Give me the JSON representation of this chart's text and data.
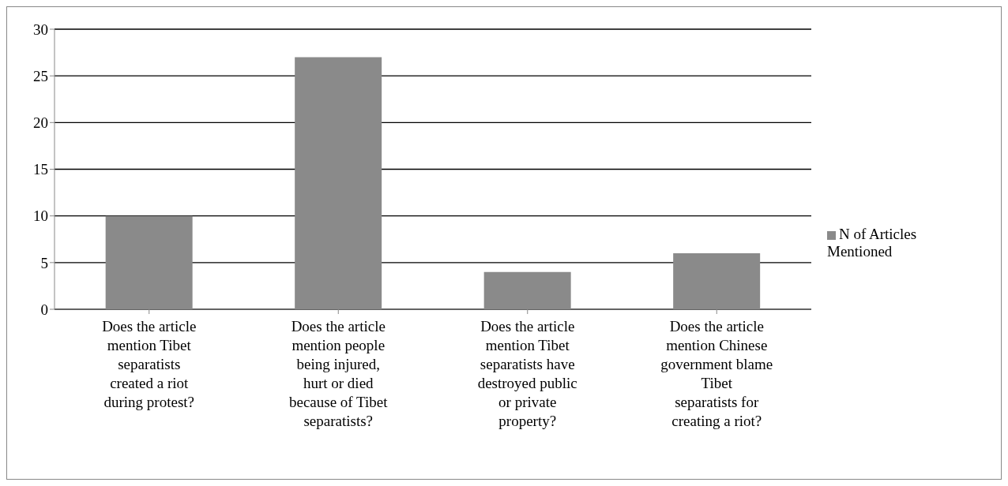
{
  "chart_data": {
    "type": "bar",
    "categories": [
      "Does the article mention Tibet separatists created a riot during protest?",
      "Does the article mention people being injured, hurt or died because of Tibet separatists?",
      "Does the article mention Tibet separatists have destroyed public or private property?",
      "Does the article mention Chinese government blame Tibet separatists for creating a riot?"
    ],
    "series": [
      {
        "name": "N of Articles Mentioned",
        "color": "#8a8a8a",
        "values": [
          10,
          27,
          4,
          6
        ]
      }
    ],
    "ylim": [
      0,
      30
    ],
    "yticks": [
      0,
      5,
      10,
      15,
      20,
      25,
      30
    ],
    "grid": "y",
    "legend": "right"
  }
}
